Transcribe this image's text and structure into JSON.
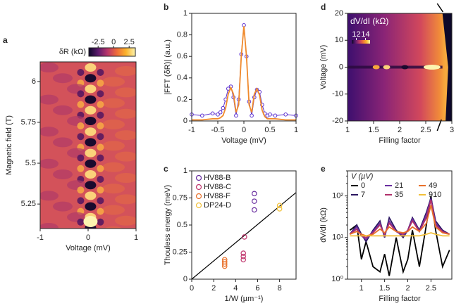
{
  "chart_data": [
    {
      "type": "heatmap",
      "label": "a",
      "xlabel": "Voltage (mV)",
      "ylabel": "Magnetic field (T)",
      "xlim": [
        -1,
        1
      ],
      "xticks": [
        -1,
        0,
        1
      ],
      "ylim": [
        5.1,
        6.12
      ],
      "yticks": [
        5.25,
        5.5,
        5.75,
        6
      ],
      "colorbar": {
        "label": "δR (kΩ)",
        "lim": [
          -4,
          3.5
        ],
        "ticks": [
          -2.5,
          0,
          2.5
        ],
        "position": "top"
      },
      "colormap": [
        "#0d0829",
        "#5c1a6e",
        "#b8366b",
        "#ee6b3a",
        "#fbb42c",
        "#fcf5b0"
      ]
    },
    {
      "type": "line",
      "label": "b",
      "xlabel": "Voltage (mV)",
      "ylabel": "|FFT (δR)| (a.u.)",
      "xlim": [
        -1,
        1
      ],
      "xticks": [
        -1,
        -0.5,
        0,
        0.5,
        1
      ],
      "ylim": [
        0,
        1
      ],
      "yticks": [
        0,
        0.2,
        0.4,
        0.6,
        0.8,
        1
      ],
      "series": [
        {
          "color": "#5b2fd0",
          "marker": "circle",
          "x": [
            -1,
            -0.8,
            -0.6,
            -0.5,
            -0.45,
            -0.4,
            -0.35,
            -0.3,
            -0.25,
            -0.2,
            -0.15,
            -0.1,
            -0.05,
            0,
            0.05,
            0.1,
            0.15,
            0.2,
            0.25,
            0.3,
            0.35,
            0.4,
            0.45,
            0.5,
            0.6,
            0.8,
            1
          ],
          "values": [
            0.06,
            0.05,
            0.07,
            0.06,
            0.08,
            0.12,
            0.2,
            0.3,
            0.32,
            0.22,
            0.05,
            0.2,
            0.62,
            0.89,
            0.6,
            0.18,
            0.05,
            0.22,
            0.29,
            0.27,
            0.15,
            0.07,
            0.05,
            0.06,
            0.05,
            0.06,
            0.05
          ]
        },
        {
          "color": "#f08a2c",
          "marker": "none",
          "x": [
            -1,
            -0.8,
            -0.6,
            -0.5,
            -0.45,
            -0.4,
            -0.35,
            -0.3,
            -0.25,
            -0.2,
            -0.15,
            -0.1,
            -0.05,
            0,
            0.05,
            0.1,
            0.15,
            0.2,
            0.25,
            0.3,
            0.35,
            0.4,
            0.45,
            0.5,
            0.6,
            0.8,
            1
          ],
          "values": [
            0.01,
            0.01,
            0.02,
            0.02,
            0.03,
            0.05,
            0.12,
            0.25,
            0.31,
            0.25,
            0.08,
            0.15,
            0.6,
            0.88,
            0.6,
            0.15,
            0.08,
            0.25,
            0.3,
            0.24,
            0.1,
            0.04,
            0.02,
            0.02,
            0.02,
            0.01,
            0.01
          ]
        }
      ]
    },
    {
      "type": "scatter",
      "label": "c",
      "xlabel": "1/W (µm⁻¹)",
      "ylabel": "Thouless energy (meV)",
      "xlim": [
        0,
        9.5
      ],
      "xticks": [
        0,
        2,
        4,
        6,
        8
      ],
      "ylim": [
        0,
        1
      ],
      "yticks": [
        0,
        0.25,
        0.5,
        0.75,
        1
      ],
      "legend": "top-left",
      "fit": {
        "color": "#000000",
        "x": [
          0,
          9.5
        ],
        "values": [
          0,
          0.8
        ]
      },
      "series": [
        {
          "name": "HV88-B",
          "color": "#6a2fa0",
          "x": [
            5.7,
            5.7,
            5.7
          ],
          "values": [
            0.64,
            0.72,
            0.79
          ]
        },
        {
          "name": "HV88-C",
          "color": "#c0386e",
          "x": [
            4.7,
            4.7,
            4.7,
            4.8
          ],
          "values": [
            0.18,
            0.21,
            0.24,
            0.39
          ]
        },
        {
          "name": "HV88-F",
          "color": "#e8702a",
          "x": [
            3,
            3,
            3,
            3
          ],
          "values": [
            0.12,
            0.14,
            0.16,
            0.18
          ]
        },
        {
          "name": "DP24-D",
          "color": "#f2c038",
          "x": [
            8,
            8
          ],
          "values": [
            0.65,
            0.68
          ]
        }
      ]
    },
    {
      "type": "heatmap",
      "label": "d",
      "xlabel": "Filling factor",
      "ylabel": "Voltage (mV)",
      "xlim": [
        1,
        3
      ],
      "xticks": [
        1,
        1.5,
        2,
        2.5,
        3
      ],
      "ylim": [
        -20,
        20
      ],
      "yticks": [
        -20,
        -10,
        0,
        10,
        20
      ],
      "colorbar": {
        "label": "dV/dI (kΩ)",
        "lim": [
          11,
          15
        ],
        "ticks": [
          12,
          14
        ],
        "position": "inside"
      },
      "colormap": [
        "#0d0829",
        "#5c1a6e",
        "#b8366b",
        "#ee6b3a",
        "#fbb42c",
        "#fcf5b0"
      ]
    },
    {
      "type": "line",
      "label": "e",
      "xlabel": "Filling factor",
      "ylabel": "dV/dI (kΩ)",
      "yscale": "log",
      "xlim": [
        0.7,
        2.95
      ],
      "xticks": [
        1,
        1.5,
        2,
        2.5
      ],
      "ylim": [
        1,
        400
      ],
      "yticks": [
        {
          "value": 1,
          "label": "10⁰"
        },
        {
          "value": 10,
          "label": "10¹"
        },
        {
          "value": 100,
          "label": "10²"
        }
      ],
      "legend_title": "V (µV)",
      "legend": "top",
      "series": [
        {
          "name": "0",
          "color": "#000000",
          "x": [
            0.75,
            0.9,
            1.0,
            1.1,
            1.25,
            1.4,
            1.5,
            1.6,
            1.75,
            1.9,
            2.0,
            2.1,
            2.25,
            2.4,
            2.5,
            2.6,
            2.75,
            2.9
          ],
          "values": [
            15,
            20,
            3,
            8,
            2,
            1.5,
            4,
            1.2,
            10,
            1.5,
            3,
            15,
            2,
            20,
            100,
            15,
            2,
            5
          ]
        },
        {
          "name": "7",
          "color": "#2a1660",
          "x": [
            0.75,
            0.9,
            1.0,
            1.1,
            1.25,
            1.4,
            1.5,
            1.6,
            1.75,
            1.9,
            2.0,
            2.1,
            2.25,
            2.4,
            2.5,
            2.6,
            2.75,
            2.9
          ],
          "values": [
            12,
            20,
            12,
            8,
            15,
            25,
            10,
            30,
            15,
            10,
            15,
            30,
            15,
            40,
            90,
            25,
            15,
            12
          ]
        },
        {
          "name": "21",
          "color": "#6a2fa0",
          "x": [
            0.75,
            0.9,
            1.0,
            1.1,
            1.25,
            1.4,
            1.5,
            1.6,
            1.75,
            1.9,
            2.0,
            2.1,
            2.25,
            2.4,
            2.5,
            2.6,
            2.75,
            2.9
          ],
          "values": [
            12,
            18,
            11,
            9,
            14,
            22,
            11,
            25,
            14,
            11,
            15,
            28,
            14,
            35,
            85,
            22,
            14,
            12
          ]
        },
        {
          "name": "35",
          "color": "#b0306a",
          "x": [
            0.75,
            0.9,
            1.0,
            1.1,
            1.25,
            1.4,
            1.5,
            1.6,
            1.75,
            1.9,
            2.0,
            2.1,
            2.25,
            2.4,
            2.5,
            2.6,
            2.75,
            2.9
          ],
          "values": [
            12,
            16,
            11,
            10,
            13,
            20,
            12,
            22,
            14,
            12,
            15,
            25,
            14,
            30,
            80,
            20,
            14,
            12
          ]
        },
        {
          "name": "49",
          "color": "#e8702a",
          "x": [
            0.75,
            0.9,
            1.0,
            1.1,
            1.25,
            1.4,
            1.5,
            1.6,
            1.75,
            1.9,
            2.0,
            2.1,
            2.25,
            2.4,
            2.5,
            2.6,
            2.75,
            2.9
          ],
          "values": [
            12,
            14,
            12,
            11,
            12,
            16,
            13,
            18,
            14,
            13,
            14,
            18,
            14,
            22,
            60,
            18,
            13,
            12
          ]
        },
        {
          "name": "910",
          "color": "#f2c038",
          "x": [
            0.75,
            0.9,
            1.0,
            1.1,
            1.25,
            1.4,
            1.5,
            1.6,
            1.75,
            1.9,
            2.0,
            2.1,
            2.25,
            2.4,
            2.5,
            2.6,
            2.75,
            2.9
          ],
          "values": [
            11,
            11,
            11,
            11,
            11,
            11,
            11,
            11,
            11,
            11,
            11,
            11,
            11,
            12,
            13,
            12,
            11,
            11
          ]
        }
      ]
    }
  ]
}
